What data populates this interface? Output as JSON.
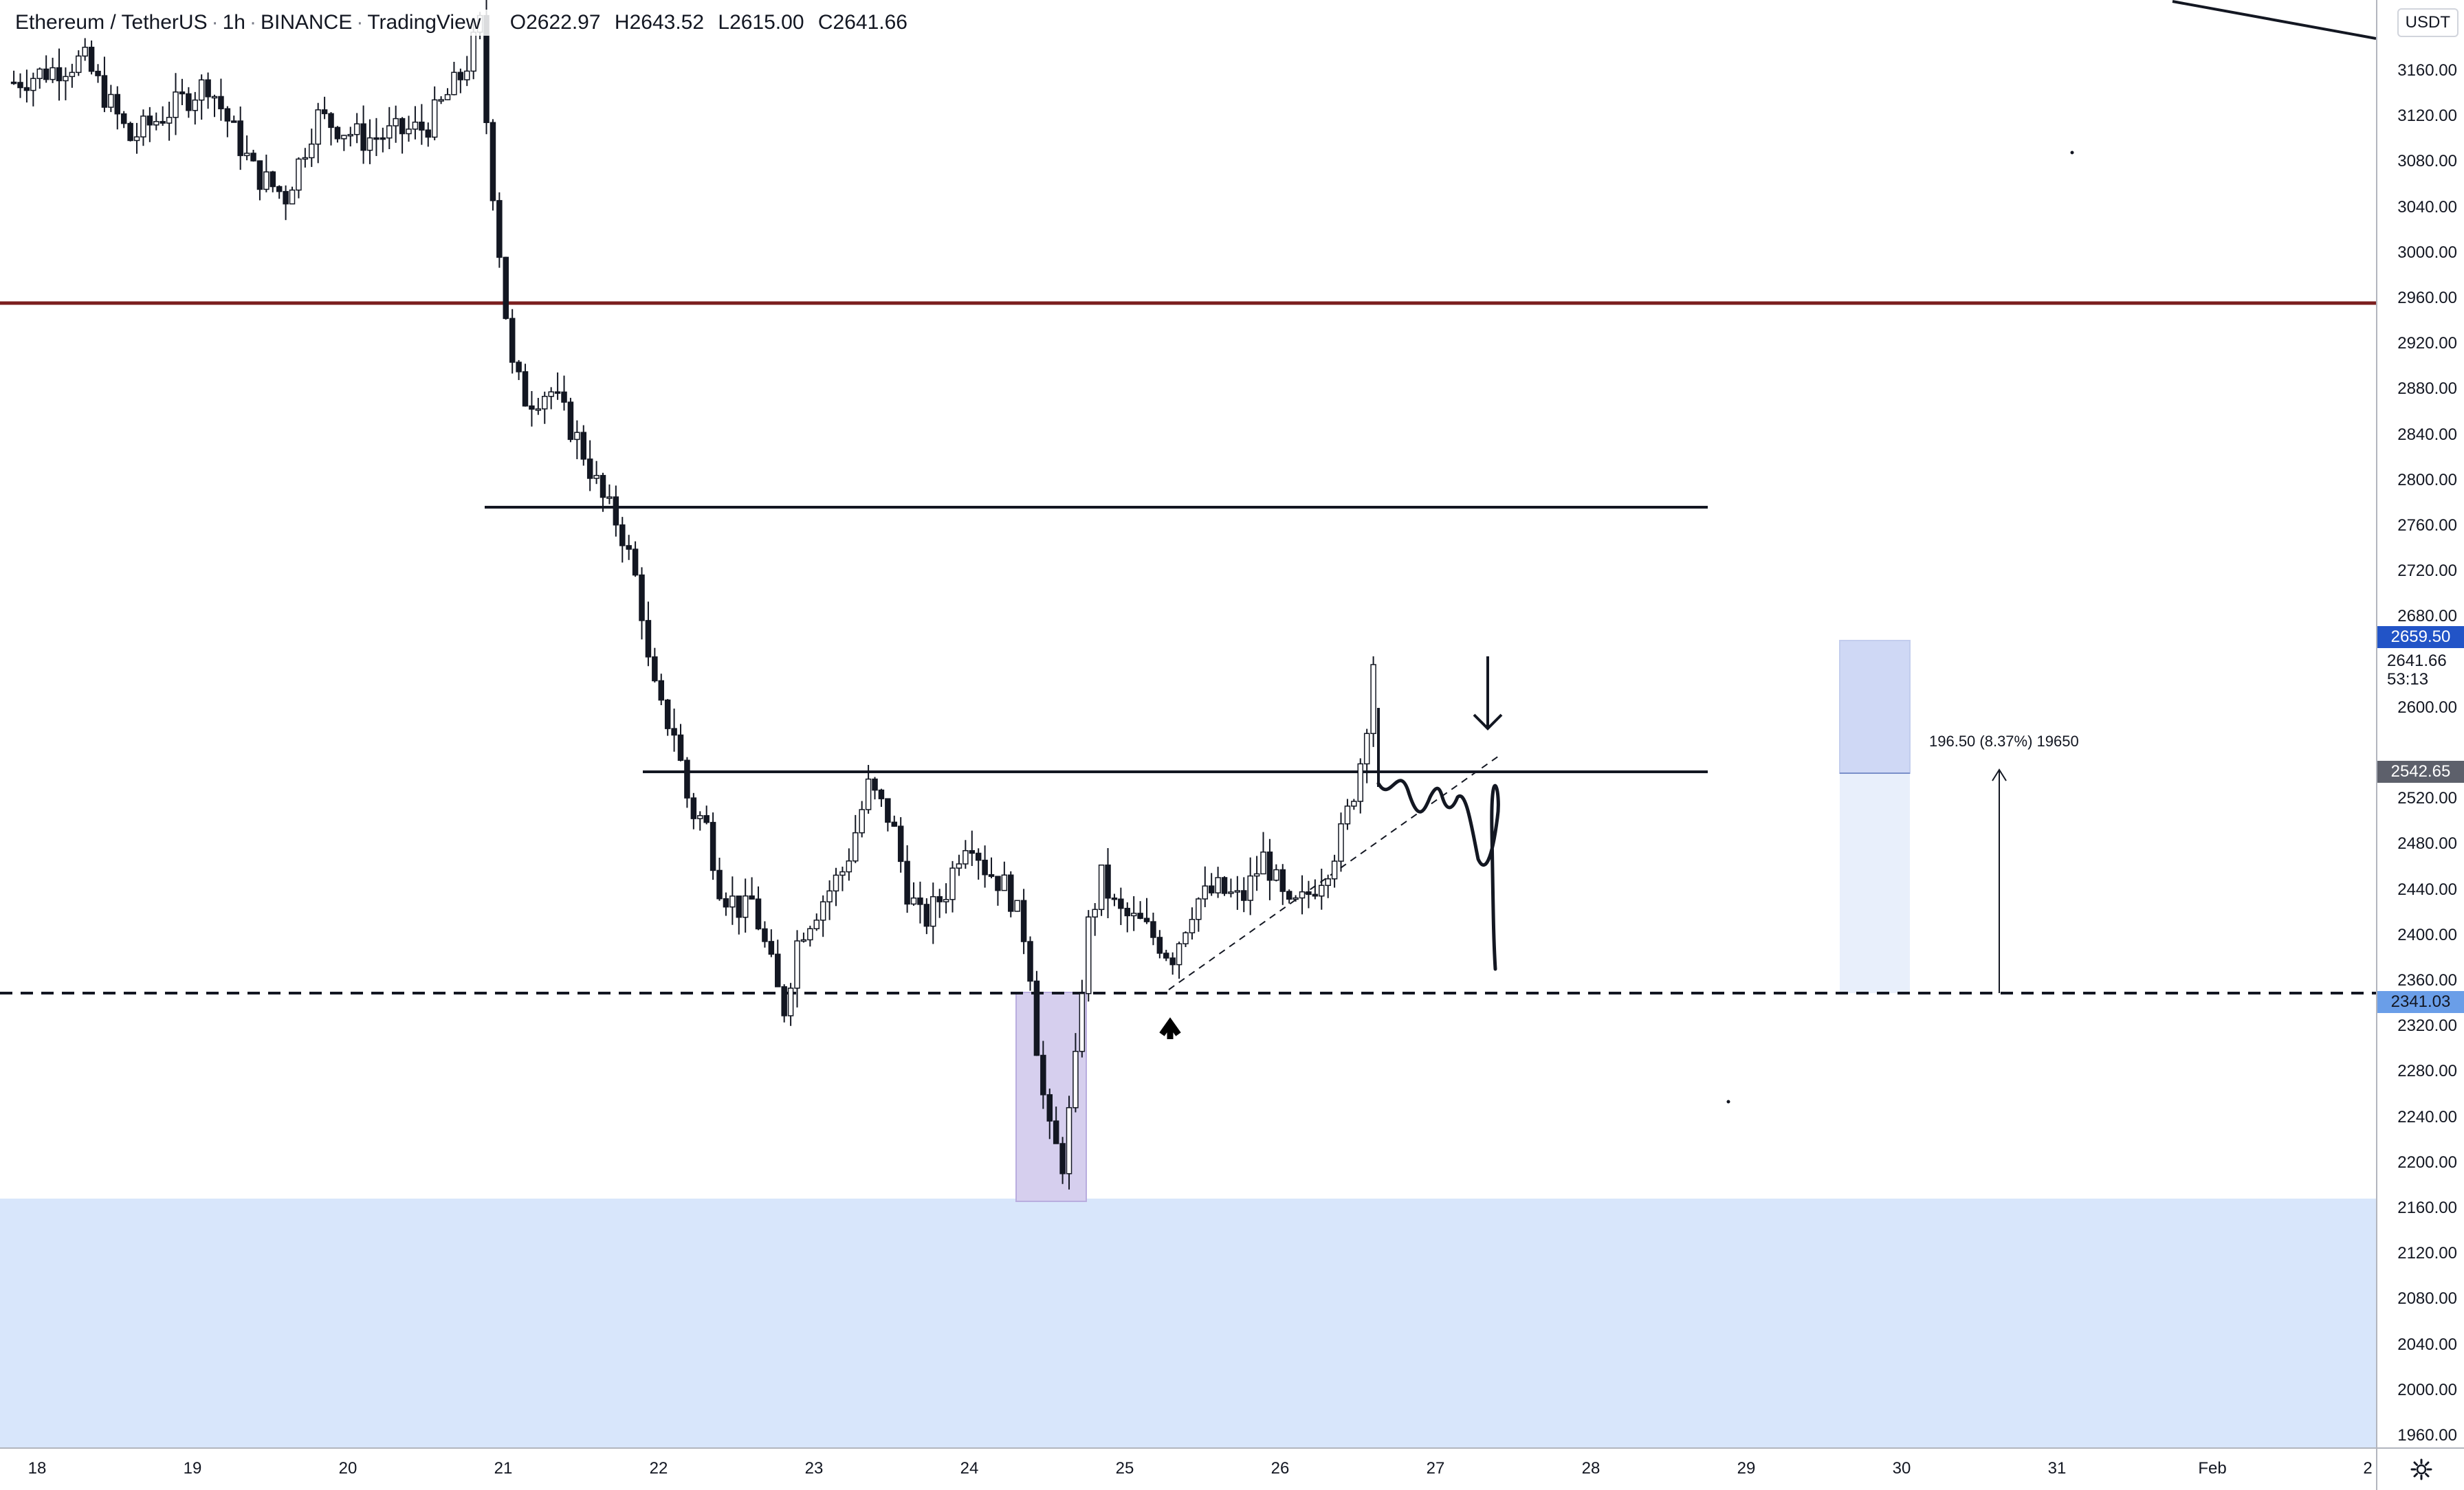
{
  "header": {
    "symbol": "Ethereum / TetherUS",
    "interval": "1h",
    "exchange": "BINANCE",
    "source": "TradingView",
    "open_label": "O",
    "open": "2622.97",
    "high_label": "H",
    "high": "2643.52",
    "low_label": "L",
    "low": "2615.00",
    "close_label": "C",
    "close": "2641.66"
  },
  "price_scale": {
    "currency": "USDT",
    "ticks": [
      "3160.00",
      "3120.00",
      "3080.00",
      "3040.00",
      "3000.00",
      "2960.00",
      "2920.00",
      "2880.00",
      "2840.00",
      "2800.00",
      "2760.00",
      "2720.00",
      "2680.00",
      "2600.00",
      "2520.00",
      "2480.00",
      "2440.00",
      "2400.00",
      "2360.00",
      "2320.00",
      "2280.00",
      "2240.00",
      "2200.00",
      "2160.00",
      "2120.00",
      "2080.00",
      "2040.00",
      "2000.00",
      "1960.00"
    ],
    "tags": {
      "top_target": "2659.50",
      "last_price": "2641.66",
      "countdown": "53:13",
      "neckline": "2542.65",
      "support": "2341.03"
    }
  },
  "time_scale": {
    "labels": [
      "18",
      "19",
      "20",
      "21",
      "22",
      "23",
      "24",
      "25",
      "26",
      "27",
      "28",
      "29",
      "30",
      "31",
      "Feb",
      "2"
    ]
  },
  "drawings": {
    "measure_text": "196.50 (8.37%) 19650",
    "resistance_red": 2955,
    "resistance_upper": 2777,
    "neckline": 2542.65,
    "support_dashed": 2341.03,
    "demand_zone": [
      1940,
      2165
    ],
    "long_position": {
      "stop": 2335,
      "entry": 2542.65,
      "target": 2659.5
    }
  },
  "colors": {
    "up_candle": "#ffffff",
    "candle_border": "#131722",
    "last_price_tag": "#2254c7",
    "neutral_tag": "#5d606b",
    "support_tag": "#6a9ee8",
    "resistance_red": "#7b1f1f",
    "demand_zone": "#d8e6fb",
    "accumulation_box": "#d6cfee",
    "target_zone": "#cfd8f5",
    "stop_zone": "#e8effb"
  },
  "icons": {
    "settings": "gear-icon"
  },
  "chart_data": {
    "type": "candlestick",
    "title": "Ethereum / TetherUS",
    "interval": "1h",
    "ylim": [
      1930,
      3200
    ],
    "x_labels": [
      "18",
      "19",
      "20",
      "21",
      "22",
      "23",
      "24",
      "25",
      "26",
      "27",
      "28",
      "29",
      "30",
      "31",
      "Feb",
      "2"
    ],
    "annotations": {
      "measure": "196.50 (8.37%) 19650",
      "horizontal_levels": [
        2955,
        2777,
        2542.65,
        2341.03
      ]
    },
    "path": [
      [
        17.85,
        3150
      ],
      [
        18.3,
        3170
      ],
      [
        18.6,
        3100
      ],
      [
        19.1,
        3150
      ],
      [
        19.4,
        3070
      ],
      [
        19.6,
        3050
      ],
      [
        19.8,
        3120
      ],
      [
        20.1,
        3100
      ],
      [
        20.5,
        3110
      ],
      [
        20.75,
        3160
      ],
      [
        20.85,
        3200
      ],
      [
        20.9,
        3100
      ],
      [
        21.0,
        2970
      ],
      [
        21.05,
        2900
      ],
      [
        21.15,
        2870
      ],
      [
        21.3,
        2880
      ],
      [
        21.5,
        2830
      ],
      [
        21.65,
        2780
      ],
      [
        21.75,
        2760
      ],
      [
        21.88,
        2700
      ],
      [
        21.93,
        2640
      ],
      [
        22.0,
        2600
      ],
      [
        22.1,
        2580
      ],
      [
        22.2,
        2510
      ],
      [
        22.3,
        2500
      ],
      [
        22.4,
        2440
      ],
      [
        22.55,
        2420
      ],
      [
        22.6,
        2430
      ],
      [
        22.75,
        2360
      ],
      [
        22.8,
        2330
      ],
      [
        22.9,
        2400
      ],
      [
        23.1,
        2440
      ],
      [
        23.2,
        2460
      ],
      [
        23.35,
        2530
      ],
      [
        23.5,
        2500
      ],
      [
        23.6,
        2440
      ],
      [
        23.7,
        2410
      ],
      [
        23.85,
        2440
      ],
      [
        23.95,
        2480
      ],
      [
        24.0,
        2490
      ],
      [
        24.1,
        2460
      ],
      [
        24.25,
        2440
      ],
      [
        24.38,
        2390
      ],
      [
        24.42,
        2320
      ],
      [
        24.5,
        2230
      ],
      [
        24.6,
        2200
      ],
      [
        24.68,
        2280
      ],
      [
        24.75,
        2400
      ],
      [
        24.85,
        2450
      ],
      [
        24.95,
        2420
      ],
      [
        25.1,
        2410
      ],
      [
        25.25,
        2390
      ],
      [
        25.3,
        2380
      ],
      [
        25.45,
        2430
      ],
      [
        25.6,
        2440
      ],
      [
        25.75,
        2430
      ],
      [
        25.9,
        2470
      ],
      [
        26.05,
        2420
      ],
      [
        26.15,
        2430
      ],
      [
        26.3,
        2460
      ],
      [
        26.4,
        2490
      ],
      [
        26.5,
        2540
      ],
      [
        26.55,
        2580
      ],
      [
        26.6,
        2641.66
      ]
    ]
  }
}
